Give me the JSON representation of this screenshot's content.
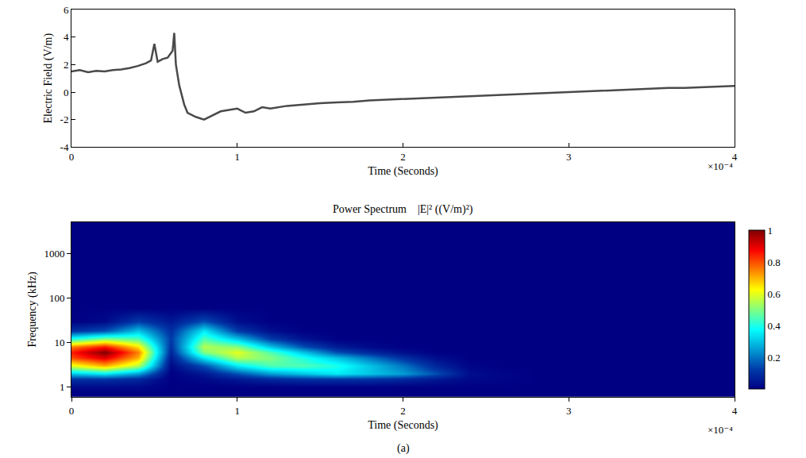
{
  "chart_data": [
    {
      "type": "line",
      "x_label": "Time (Seconds)",
      "y_label": "Electric Field (V/m)",
      "annotations": [
        "×10⁻⁴"
      ],
      "color": "#4a4a4a",
      "xlim": [
        0,
        4
      ],
      "xticks": [
        0,
        1,
        2,
        3,
        4
      ],
      "ylim": [
        -4,
        6
      ],
      "yticks": [
        -4,
        -2,
        0,
        2,
        4,
        6
      ],
      "x": [
        0,
        0.05,
        0.1,
        0.15,
        0.2,
        0.25,
        0.3,
        0.35,
        0.4,
        0.45,
        0.48,
        0.5,
        0.52,
        0.55,
        0.58,
        0.61,
        0.62,
        0.63,
        0.65,
        0.68,
        0.7,
        0.75,
        0.8,
        0.85,
        0.9,
        0.95,
        1.0,
        1.05,
        1.1,
        1.15,
        1.2,
        1.3,
        1.4,
        1.5,
        1.6,
        1.7,
        1.8,
        1.9,
        2.0,
        2.1,
        2.2,
        2.3,
        2.4,
        2.5,
        2.6,
        2.7,
        2.8,
        2.9,
        3.0,
        3.1,
        3.2,
        3.3,
        3.4,
        3.5,
        3.6,
        3.7,
        3.8,
        3.9,
        4.0
      ],
      "values": [
        1.5,
        1.6,
        1.45,
        1.55,
        1.5,
        1.6,
        1.65,
        1.75,
        1.9,
        2.1,
        2.3,
        3.5,
        2.2,
        2.4,
        2.5,
        3.0,
        4.3,
        2.0,
        0.5,
        -0.9,
        -1.5,
        -1.8,
        -2.0,
        -1.7,
        -1.4,
        -1.3,
        -1.2,
        -1.5,
        -1.4,
        -1.1,
        -1.2,
        -1.0,
        -0.9,
        -0.8,
        -0.75,
        -0.7,
        -0.6,
        -0.55,
        -0.5,
        -0.45,
        -0.4,
        -0.35,
        -0.3,
        -0.25,
        -0.2,
        -0.15,
        -0.1,
        -0.05,
        0.0,
        0.05,
        0.1,
        0.15,
        0.2,
        0.25,
        0.3,
        0.3,
        0.35,
        0.4,
        0.45
      ]
    },
    {
      "type": "heatmap",
      "title": "Power Spectrum    |E|² ((V/m)²)",
      "x_label": "Time (Seconds)",
      "y_label": "Frequency (kHz)",
      "annotations": [
        "×10⁻⁴"
      ],
      "caption": "(a)",
      "log": "y",
      "xlim": [
        0,
        4
      ],
      "xticks": [
        0,
        1,
        2,
        3,
        4
      ],
      "ylim": [
        0.6,
        5000
      ],
      "yticks": [
        1,
        10,
        100,
        1000
      ],
      "zlim": [
        0,
        1
      ],
      "zticks": [
        0.2,
        0.4,
        0.6,
        0.8,
        1
      ],
      "x": [
        0,
        0.2,
        0.4,
        0.6,
        0.8,
        1.0,
        1.2,
        1.4,
        1.6,
        1.8,
        2.0,
        2.2,
        2.4,
        2.6,
        2.8,
        3.0,
        3.2,
        3.4,
        3.6,
        3.8,
        4.0
      ],
      "y": [
        0.7,
        1,
        1.5,
        2,
        3,
        4.5,
        6,
        8,
        12,
        18,
        30,
        60,
        200,
        6000
      ],
      "z": [
        [
          0,
          0,
          0,
          0,
          0,
          0,
          0,
          0,
          0,
          0,
          0,
          0,
          0,
          0,
          0,
          0,
          0,
          0,
          0,
          0,
          0
        ],
        [
          0.02,
          0.02,
          0.02,
          0,
          0,
          0,
          0,
          0,
          0,
          0,
          0,
          0,
          0,
          0,
          0,
          0,
          0,
          0,
          0,
          0,
          0
        ],
        [
          0.1,
          0.1,
          0.08,
          0,
          0.02,
          0.05,
          0.08,
          0.1,
          0.1,
          0.1,
          0.08,
          0.05,
          0.02,
          0.01,
          0,
          0,
          0,
          0,
          0,
          0,
          0
        ],
        [
          0.3,
          0.35,
          0.25,
          0,
          0.05,
          0.15,
          0.25,
          0.3,
          0.35,
          0.3,
          0.25,
          0.15,
          0.03,
          0.01,
          0,
          0,
          0,
          0,
          0,
          0,
          0
        ],
        [
          0.6,
          0.7,
          0.55,
          0.02,
          0.15,
          0.35,
          0.45,
          0.45,
          0.4,
          0.3,
          0.2,
          0.08,
          0.01,
          0,
          0,
          0,
          0,
          0,
          0,
          0,
          0
        ],
        [
          0.8,
          0.9,
          0.7,
          0.05,
          0.35,
          0.55,
          0.5,
          0.4,
          0.3,
          0.2,
          0.1,
          0.03,
          0,
          0,
          0,
          0,
          0,
          0,
          0,
          0,
          0
        ],
        [
          0.85,
          1.0,
          0.75,
          0.08,
          0.5,
          0.6,
          0.45,
          0.3,
          0.15,
          0.08,
          0.03,
          0,
          0,
          0,
          0,
          0,
          0,
          0,
          0,
          0,
          0
        ],
        [
          0.75,
          0.85,
          0.65,
          0.1,
          0.55,
          0.5,
          0.3,
          0.15,
          0.06,
          0.02,
          0,
          0,
          0,
          0,
          0,
          0,
          0,
          0,
          0,
          0,
          0
        ],
        [
          0.4,
          0.5,
          0.45,
          0.12,
          0.45,
          0.3,
          0.12,
          0.04,
          0,
          0,
          0,
          0,
          0,
          0,
          0,
          0,
          0,
          0,
          0,
          0,
          0
        ],
        [
          0.1,
          0.15,
          0.3,
          0.1,
          0.35,
          0.12,
          0.03,
          0,
          0,
          0,
          0,
          0,
          0,
          0,
          0,
          0,
          0,
          0,
          0,
          0,
          0
        ],
        [
          0,
          0.02,
          0.12,
          0.05,
          0.15,
          0.03,
          0,
          0,
          0,
          0,
          0,
          0,
          0,
          0,
          0,
          0,
          0,
          0,
          0,
          0,
          0
        ],
        [
          0,
          0,
          0,
          0,
          0,
          0,
          0,
          0,
          0,
          0,
          0,
          0,
          0,
          0,
          0,
          0,
          0,
          0,
          0,
          0,
          0
        ],
        [
          0,
          0,
          0,
          0,
          0,
          0,
          0,
          0,
          0,
          0,
          0,
          0,
          0,
          0,
          0,
          0,
          0,
          0,
          0,
          0,
          0
        ],
        [
          0,
          0,
          0,
          0,
          0,
          0,
          0,
          0,
          0,
          0,
          0,
          0,
          0,
          0,
          0,
          0,
          0,
          0,
          0,
          0,
          0
        ]
      ]
    }
  ]
}
